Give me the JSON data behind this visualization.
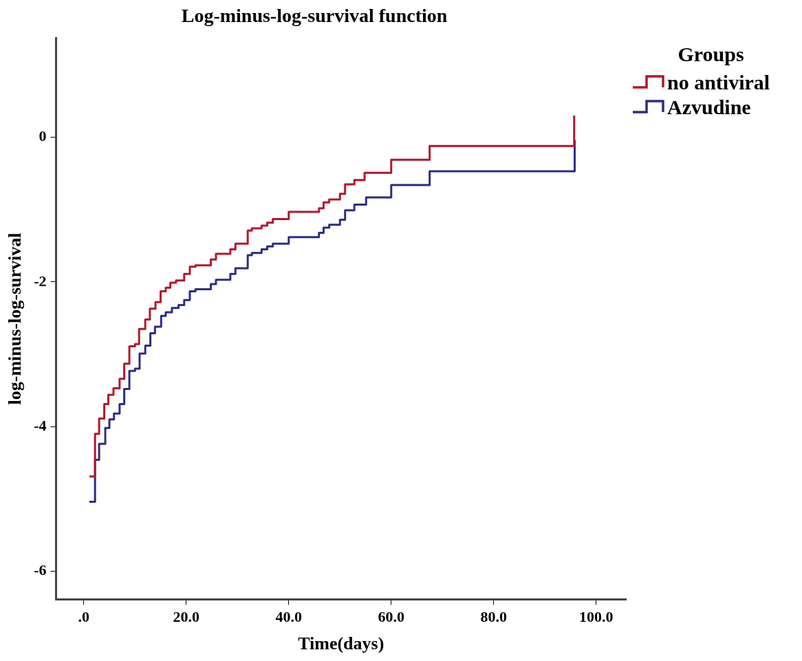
{
  "chart_data": {
    "type": "step",
    "title": "Log-minus-log-survival function",
    "xlabel": "Time(days)",
    "ylabel": "log-minus-log-survival",
    "legend_title": "Groups",
    "legend": "top right",
    "grid": false,
    "marker": "none",
    "line_style": "solid",
    "xlim": [
      -5.4,
      105.8
    ],
    "xticks": [
      {
        "value": 0,
        "label": ".0"
      },
      {
        "value": 20,
        "label": "20.0"
      },
      {
        "value": 40,
        "label": "40.0"
      },
      {
        "value": 60,
        "label": "60.0"
      },
      {
        "value": 80,
        "label": "80.0"
      },
      {
        "value": 100,
        "label": "100.0"
      }
    ],
    "ylim": [
      -6.39,
      1.37
    ],
    "yticks": [
      0,
      -2,
      -4,
      -6
    ],
    "series": [
      {
        "name": "no antiviral",
        "color": "#b2172b",
        "x": [
          1.1,
          2.2,
          3.0,
          4.0,
          4.8,
          5.8,
          7.0,
          7.9,
          8.9,
          10.0,
          10.8,
          12.0,
          12.9,
          14.0,
          15.0,
          16.0,
          16.9,
          18.0,
          19.6,
          20.7,
          21.8,
          24.8,
          25.8,
          28.6,
          29.6,
          32.0,
          32.8,
          34.7,
          35.8,
          36.9,
          40.0,
          45.9,
          46.8,
          47.9,
          50.0,
          51.0,
          52.8,
          54.8,
          60.0,
          67.5,
          95.7
        ],
        "values": [
          -4.69,
          -4.1,
          -3.89,
          -3.69,
          -3.56,
          -3.47,
          -3.34,
          -3.13,
          -2.89,
          -2.86,
          -2.65,
          -2.52,
          -2.37,
          -2.28,
          -2.13,
          -2.08,
          -2.01,
          -1.98,
          -1.89,
          -1.79,
          -1.77,
          -1.69,
          -1.61,
          -1.55,
          -1.47,
          -1.29,
          -1.26,
          -1.22,
          -1.18,
          -1.13,
          -1.03,
          -0.98,
          -0.9,
          -0.86,
          -0.78,
          -0.65,
          -0.59,
          -0.49,
          -0.31,
          -0.12,
          0.3
        ]
      },
      {
        "name": "Azvudine",
        "color": "#2b2d84",
        "x": [
          1.1,
          2.2,
          3.0,
          4.2,
          5.0,
          5.9,
          7.0,
          7.9,
          8.9,
          10.0,
          10.9,
          12.0,
          13.0,
          13.9,
          15.1,
          16.0,
          17.2,
          18.5,
          19.6,
          20.7,
          21.8,
          24.8,
          25.8,
          28.6,
          29.6,
          32.0,
          32.8,
          34.7,
          35.8,
          36.9,
          40.0,
          45.9,
          46.8,
          47.9,
          50.0,
          51.0,
          52.8,
          55.1,
          60.0,
          67.5,
          95.8
        ],
        "values": [
          -5.04,
          -4.46,
          -4.24,
          -4.02,
          -3.9,
          -3.82,
          -3.69,
          -3.48,
          -3.23,
          -3.2,
          -2.99,
          -2.88,
          -2.71,
          -2.62,
          -2.47,
          -2.42,
          -2.36,
          -2.32,
          -2.25,
          -2.13,
          -2.1,
          -2.03,
          -1.97,
          -1.89,
          -1.81,
          -1.63,
          -1.6,
          -1.55,
          -1.51,
          -1.47,
          -1.38,
          -1.32,
          -1.25,
          -1.21,
          -1.14,
          -1.01,
          -0.93,
          -0.83,
          -0.66,
          -0.47,
          -0.04
        ]
      }
    ]
  }
}
